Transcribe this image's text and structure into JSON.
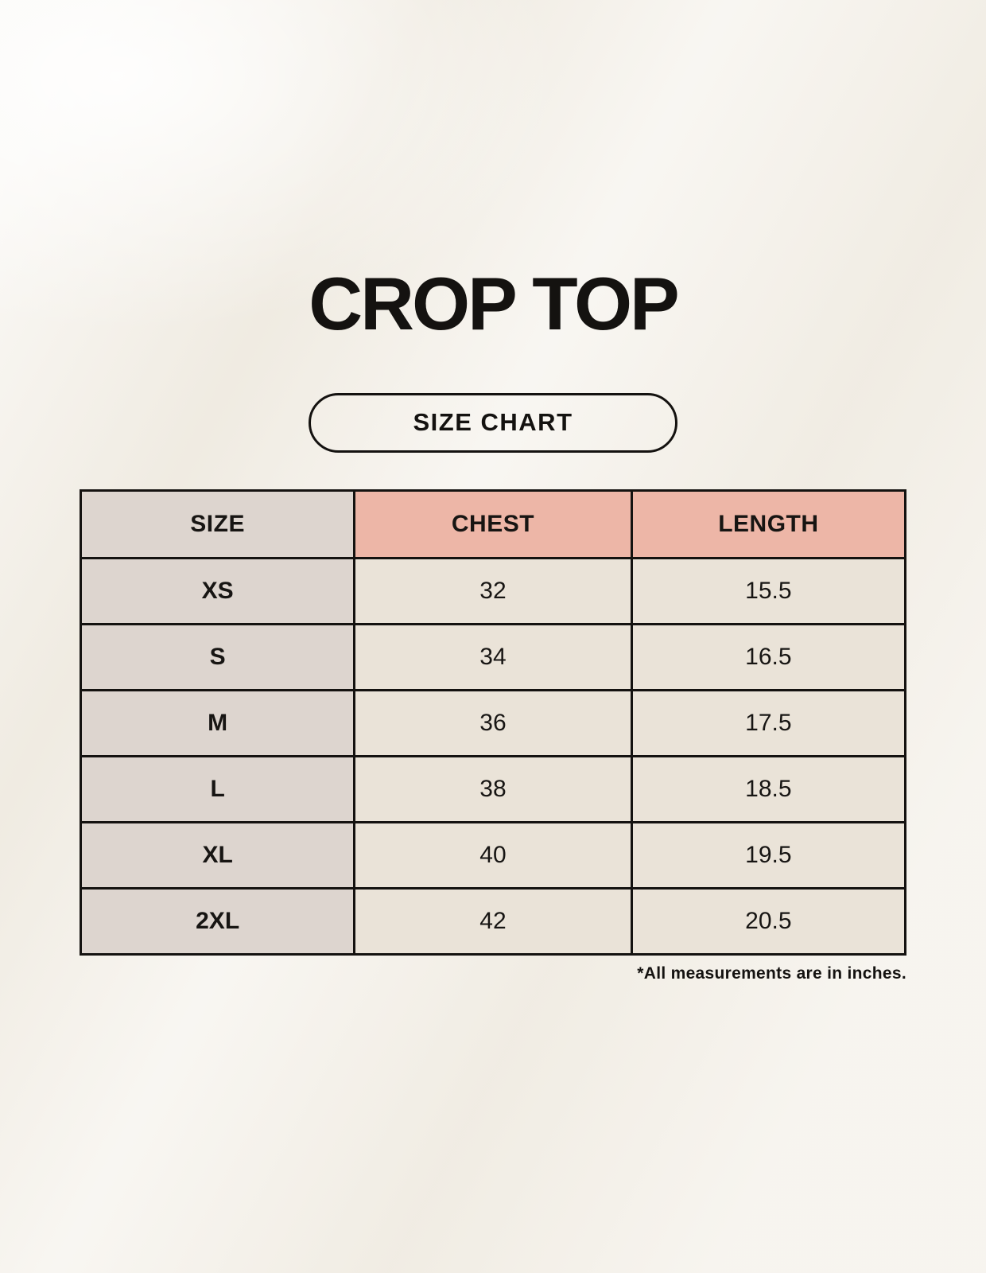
{
  "header": {
    "title": "CROP TOP",
    "badge_label": "SIZE CHART"
  },
  "table": {
    "columns": [
      "SIZE",
      "CHEST",
      "LENGTH"
    ],
    "rows": [
      [
        "XS",
        "32",
        "15.5"
      ],
      [
        "S",
        "34",
        "16.5"
      ],
      [
        "M",
        "36",
        "17.5"
      ],
      [
        "L",
        "38",
        "18.5"
      ],
      [
        "XL",
        "40",
        "19.5"
      ],
      [
        "2XL",
        "42",
        "20.5"
      ]
    ]
  },
  "footnote": "*All measurements are in inches.",
  "colors": {
    "background": "#f3efe7",
    "header_pink": "#edb6a7",
    "cell_taupe": "#ddd5cf",
    "cell_cream": "#eae3d8",
    "border": "#141210",
    "text": "#141210"
  }
}
